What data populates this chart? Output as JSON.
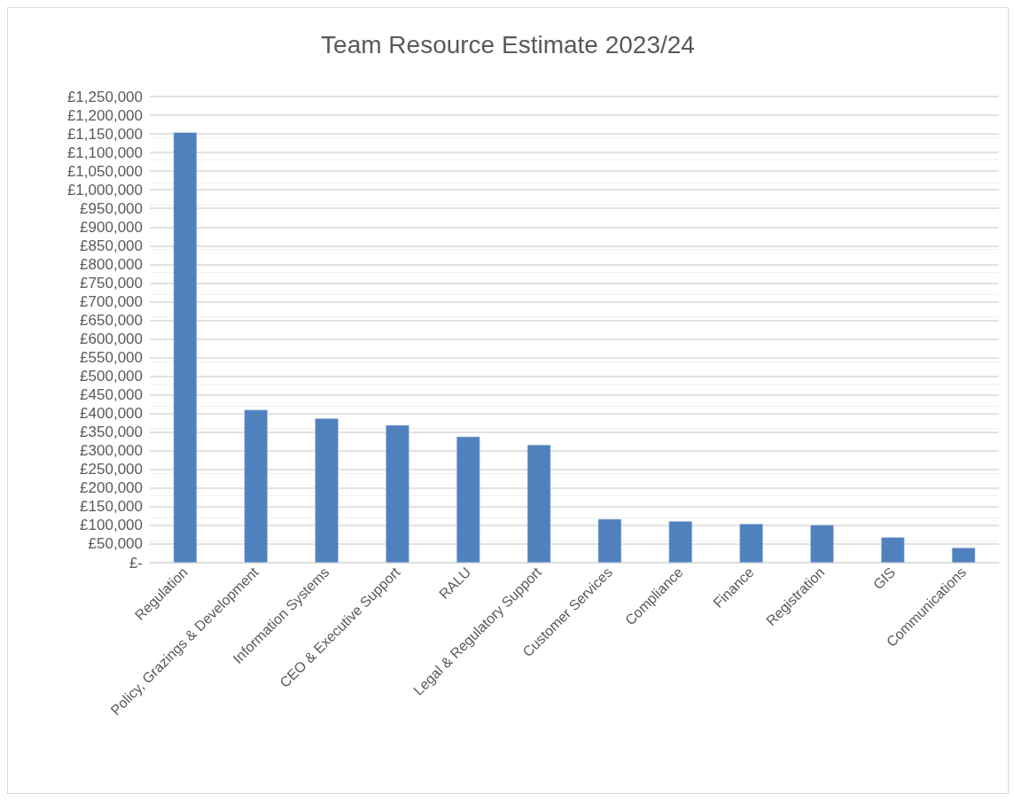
{
  "chart_data": {
    "type": "bar",
    "title": "Team Resource Estimate 2023/24",
    "categories": [
      "Regulation",
      "Policy, Grazings & Development",
      "Information Systems",
      "CEO & Executive Support",
      "RALU",
      "Legal & Regulatory Support",
      "Customer Services",
      "Compliance",
      "Finance",
      "Registration",
      "GIS",
      "Communications"
    ],
    "values": [
      1154000,
      410000,
      387000,
      369000,
      338000,
      316000,
      117000,
      111000,
      104000,
      101000,
      68000,
      40000
    ],
    "color": "#4f81bd",
    "ylim": [
      0,
      1250000
    ],
    "yticks": [
      {
        "value": 0,
        "label": "£-"
      },
      {
        "value": 50000,
        "label": "£50,000"
      },
      {
        "value": 100000,
        "label": "£100,000"
      },
      {
        "value": 150000,
        "label": "£150,000"
      },
      {
        "value": 200000,
        "label": "£200,000"
      },
      {
        "value": 250000,
        "label": "£250,000"
      },
      {
        "value": 300000,
        "label": "£300,000"
      },
      {
        "value": 350000,
        "label": "£350,000"
      },
      {
        "value": 400000,
        "label": "£400,000"
      },
      {
        "value": 450000,
        "label": "£450,000"
      },
      {
        "value": 500000,
        "label": "£500,000"
      },
      {
        "value": 550000,
        "label": "£550,000"
      },
      {
        "value": 600000,
        "label": "£600,000"
      },
      {
        "value": 650000,
        "label": "£650,000"
      },
      {
        "value": 700000,
        "label": "£700,000"
      },
      {
        "value": 750000,
        "label": "£750,000"
      },
      {
        "value": 800000,
        "label": "£800,000"
      },
      {
        "value": 850000,
        "label": "£850,000"
      },
      {
        "value": 900000,
        "label": "£900,000"
      },
      {
        "value": 950000,
        "label": "£950,000"
      },
      {
        "value": 1000000,
        "label": "£1,000,000"
      },
      {
        "value": 1050000,
        "label": "£1,050,000"
      },
      {
        "value": 1100000,
        "label": "£1,100,000"
      },
      {
        "value": 1150000,
        "label": "£1,150,000"
      },
      {
        "value": 1200000,
        "label": "£1,200,000"
      },
      {
        "value": 1250000,
        "label": "£1,250,000"
      }
    ],
    "grid": "y"
  }
}
